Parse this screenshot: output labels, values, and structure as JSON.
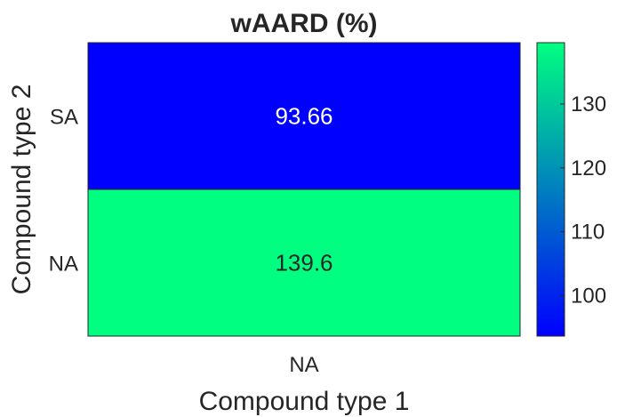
{
  "chart_data": {
    "type": "heatmap",
    "title": "wAARD (%)",
    "xlabel": "Compound type 1",
    "ylabel": "Compound type 2",
    "x_categories": [
      "NA"
    ],
    "y_categories": [
      "SA",
      "NA"
    ],
    "cells": [
      {
        "x": "NA",
        "y": "SA",
        "value": 93.66,
        "label": "93.66"
      },
      {
        "x": "NA",
        "y": "NA",
        "value": 139.6,
        "label": "139.6"
      }
    ],
    "colorbar": {
      "min": 93.66,
      "max": 139.6,
      "ticks": [
        "100",
        "110",
        "120",
        "130"
      ],
      "colormap": "winter",
      "low_color": "#0000ff",
      "high_color": "#00ff80"
    },
    "colors": {
      "text_dark": "#262626",
      "text_light": "#ffffff",
      "border": "#262626"
    }
  }
}
